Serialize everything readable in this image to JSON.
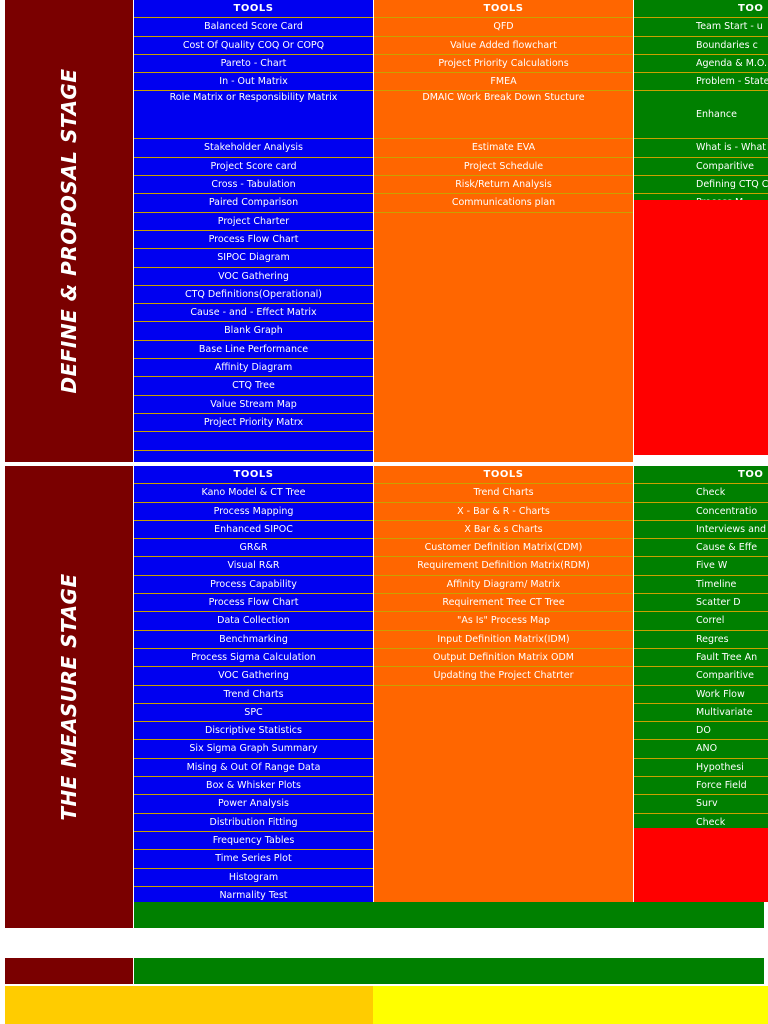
{
  "define_stage": {
    "label": "DEFINE & PROPOSAL STAGE",
    "col1_header": "TOOLS",
    "col2_header": "TOOLS",
    "col3_header": "TOO",
    "col1": [
      "Balanced Score Card",
      "Cost Of Quality COQ Or COPQ",
      "Pareto - Chart",
      "In - Out Matrix",
      "Role Matrix or Responsibility Matrix",
      "Stakeholder Analysis",
      "Project  Score card",
      "Cross - Tabulation",
      "Paired Comparison",
      "Project Charter",
      "Process Flow Chart",
      "SIPOC Diagram",
      "VOC Gathering",
      "CTQ Definitions(Operational)",
      "Cause - and - Effect Matrix",
      "Blank Graph",
      "Base Line Performance",
      "Affinity Diagram",
      "CTQ Tree",
      "Value Stream Map",
      "Project Priority Matrx",
      "",
      ""
    ],
    "col2": [
      "QFD",
      "Value Added flowchart",
      "Project Priority Calculations",
      "FMEA",
      "DMAIC Work Break Down Stucture",
      "Estimate EVA",
      "Project Schedule",
      "Risk/Return Analysis",
      "Communications plan"
    ],
    "col3": [
      "Team Start - u",
      "Boundaries c",
      "Agenda & M.O.",
      "Problem - Statem",
      "Enhance",
      "What is - What",
      "Comparitive",
      "Defining CTQ C",
      "Process M"
    ]
  },
  "measure_stage": {
    "label": "THE MEASURE STAGE",
    "col1_header": "TOOLS",
    "col2_header": "TOOLS",
    "col3_header": "TOO",
    "col1": [
      "Kano Model & CT Tree",
      "Process Mapping",
      "Enhanced SIPOC",
      "GR&R",
      "Visual R&R",
      "Process Capability",
      "Process Flow Chart",
      "Data Collection",
      "Benchmarking",
      "Process Sigma Calculation",
      "VOC Gathering",
      "Trend Charts",
      "SPC",
      "Discriptive Statistics",
      "Six Sigma Graph Summary",
      "Mising & Out Of Range Data",
      "Box & Whisker Plots",
      "Power Analysis",
      "Distribution Fitting",
      "Frequency Tables",
      "Time Series Plot",
      "Histogram",
      "Narmality Test"
    ],
    "col2": [
      "Trend Charts",
      "X - Bar & R - Charts",
      "X Bar & s Charts",
      "Customer Definition Matrix(CDM)",
      "Requirement Definition Matrix(RDM)",
      "Affinity Diagram/ Matrix",
      "Requirement Tree CT Tree",
      "\"As Is\" Process Map",
      "Input Definition Matrix(IDM)",
      "Output Definition Matrix ODM",
      "Updating the Project Chatrter"
    ],
    "col3": [
      "Check",
      "Concentratio",
      "Interviews and",
      "Cause & Effe",
      "Five W",
      "Timeline",
      "Scatter D",
      "Correl",
      "Regres",
      "Fault Tree An",
      "Comparitive",
      "Work Flow",
      "Multivariate",
      "DO",
      "ANO",
      "Hypothesi",
      "Force Field",
      "Surv",
      "Check"
    ]
  },
  "colors": {
    "stage_label": "#7a0000",
    "tools_blue": "#0000f0",
    "tools_orange": "#ff6600",
    "tools_green": "#008000",
    "empty_red": "#ff0000",
    "footer_gold": "#ffcc00",
    "footer_yellow": "#ffff00"
  }
}
